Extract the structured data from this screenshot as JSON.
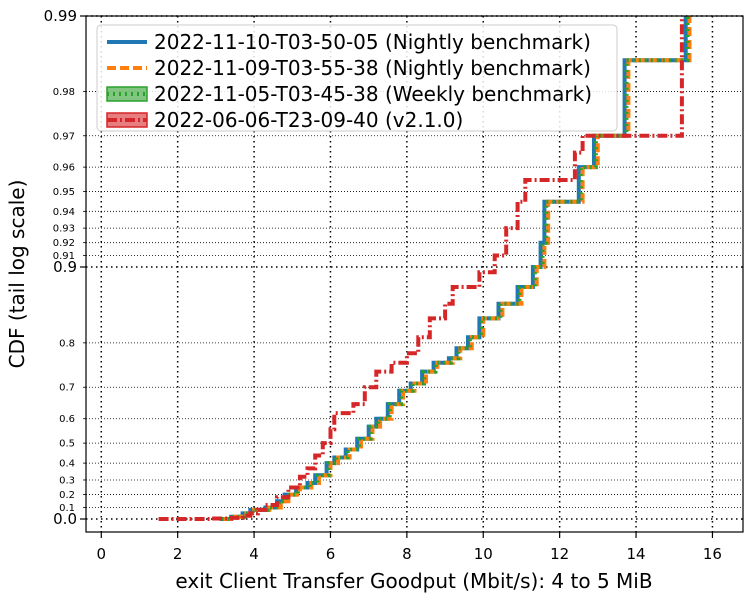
{
  "chart_data": {
    "type": "line",
    "xlabel": "exit Client Transfer Goodput (Mbit/s): 4 to 5 MiB",
    "ylabel": "CDF (tail log scale)",
    "xlim": [
      -0.4,
      16.8
    ],
    "x_ticks": [
      0,
      2,
      4,
      6,
      8,
      10,
      12,
      14,
      16
    ],
    "y_scale": "tail-log",
    "y_ticks_major": [
      0.0,
      0.9,
      0.99
    ],
    "y_ticks_major_labels": [
      "0.0",
      "0.9",
      "0.99"
    ],
    "y_ticks_minor": [
      0.1,
      0.2,
      0.3,
      0.4,
      0.5,
      0.6,
      0.7,
      0.8,
      0.91,
      0.92,
      0.93,
      0.94,
      0.95,
      0.96,
      0.97,
      0.98
    ],
    "y_ticks_minor_labels": [
      "0.1",
      "0.2",
      "0.3",
      "0.4",
      "0.5",
      "0.6",
      "0.7",
      "0.8",
      "0.91",
      "0.92",
      "0.93",
      "0.94",
      "0.95",
      "0.96",
      "0.97",
      "0.98"
    ],
    "grid": true,
    "legend_position": "top-left",
    "series": [
      {
        "name": "2022-11-10-T03-50-05 (Nightly benchmark)",
        "color": "#1f77b4",
        "style": "solid",
        "points": [
          [
            3.1,
            0.0
          ],
          [
            3.4,
            0.02
          ],
          [
            3.7,
            0.05
          ],
          [
            3.9,
            0.08
          ],
          [
            4.3,
            0.1
          ],
          [
            4.6,
            0.15
          ],
          [
            4.8,
            0.2
          ],
          [
            5.1,
            0.25
          ],
          [
            5.4,
            0.28
          ],
          [
            5.6,
            0.33
          ],
          [
            5.9,
            0.4
          ],
          [
            6.1,
            0.43
          ],
          [
            6.4,
            0.47
          ],
          [
            6.7,
            0.52
          ],
          [
            7.0,
            0.57
          ],
          [
            7.2,
            0.6
          ],
          [
            7.5,
            0.65
          ],
          [
            7.8,
            0.69
          ],
          [
            8.1,
            0.71
          ],
          [
            8.4,
            0.74
          ],
          [
            8.7,
            0.76
          ],
          [
            9.1,
            0.77
          ],
          [
            9.3,
            0.79
          ],
          [
            9.6,
            0.81
          ],
          [
            9.9,
            0.84
          ],
          [
            10.4,
            0.86
          ],
          [
            10.9,
            0.88
          ],
          [
            11.3,
            0.9
          ],
          [
            11.5,
            0.92
          ],
          [
            11.6,
            0.945
          ],
          [
            12.1,
            0.945
          ],
          [
            12.5,
            0.96
          ],
          [
            12.9,
            0.97
          ],
          [
            13.7,
            0.985
          ],
          [
            15.3,
            0.99
          ]
        ]
      },
      {
        "name": "2022-11-09-T03-55-38 (Nightly benchmark)",
        "color": "#ff7f0e",
        "style": "dashed",
        "points": [
          [
            3.2,
            0.0
          ],
          [
            3.5,
            0.02
          ],
          [
            3.8,
            0.05
          ],
          [
            4.0,
            0.08
          ],
          [
            4.4,
            0.1
          ],
          [
            4.7,
            0.15
          ],
          [
            4.9,
            0.2
          ],
          [
            5.2,
            0.25
          ],
          [
            5.5,
            0.28
          ],
          [
            5.7,
            0.33
          ],
          [
            6.0,
            0.4
          ],
          [
            6.2,
            0.43
          ],
          [
            6.5,
            0.47
          ],
          [
            6.8,
            0.52
          ],
          [
            7.1,
            0.57
          ],
          [
            7.3,
            0.6
          ],
          [
            7.6,
            0.65
          ],
          [
            7.9,
            0.69
          ],
          [
            8.2,
            0.71
          ],
          [
            8.5,
            0.74
          ],
          [
            8.8,
            0.76
          ],
          [
            9.2,
            0.77
          ],
          [
            9.4,
            0.79
          ],
          [
            9.7,
            0.81
          ],
          [
            10.0,
            0.84
          ],
          [
            10.5,
            0.86
          ],
          [
            11.0,
            0.88
          ],
          [
            11.4,
            0.9
          ],
          [
            11.6,
            0.92
          ],
          [
            11.7,
            0.945
          ],
          [
            12.2,
            0.945
          ],
          [
            12.6,
            0.96
          ],
          [
            13.0,
            0.97
          ],
          [
            13.8,
            0.985
          ],
          [
            15.4,
            0.99
          ]
        ]
      },
      {
        "name": "2022-11-05-T03-45-38 (Weekly benchmark)",
        "color": "#2ca02c",
        "style": "dotted",
        "points": [
          [
            3.15,
            0.0
          ],
          [
            3.45,
            0.02
          ],
          [
            3.75,
            0.05
          ],
          [
            3.95,
            0.08
          ],
          [
            4.35,
            0.1
          ],
          [
            4.65,
            0.15
          ],
          [
            4.85,
            0.2
          ],
          [
            5.15,
            0.25
          ],
          [
            5.45,
            0.28
          ],
          [
            5.65,
            0.33
          ],
          [
            5.95,
            0.4
          ],
          [
            6.15,
            0.43
          ],
          [
            6.45,
            0.47
          ],
          [
            6.75,
            0.52
          ],
          [
            7.05,
            0.57
          ],
          [
            7.25,
            0.6
          ],
          [
            7.55,
            0.65
          ],
          [
            7.85,
            0.69
          ],
          [
            8.15,
            0.71
          ],
          [
            8.45,
            0.74
          ],
          [
            8.75,
            0.76
          ],
          [
            9.15,
            0.77
          ],
          [
            9.35,
            0.79
          ],
          [
            9.65,
            0.81
          ],
          [
            9.95,
            0.84
          ],
          [
            10.45,
            0.86
          ],
          [
            10.95,
            0.88
          ],
          [
            11.35,
            0.9
          ],
          [
            11.55,
            0.92
          ],
          [
            11.65,
            0.945
          ],
          [
            12.15,
            0.945
          ],
          [
            12.55,
            0.96
          ],
          [
            12.95,
            0.97
          ],
          [
            13.75,
            0.985
          ],
          [
            15.35,
            0.99
          ]
        ]
      },
      {
        "name": "2022-06-06-T23-09-40 (v2.1.0)",
        "color": "#d62728",
        "style": "dashdot",
        "points": [
          [
            1.5,
            0.0
          ],
          [
            2.3,
            0.0
          ],
          [
            2.9,
            0.005
          ],
          [
            3.4,
            0.01
          ],
          [
            3.7,
            0.03
          ],
          [
            3.9,
            0.05
          ],
          [
            4.1,
            0.08
          ],
          [
            4.3,
            0.12
          ],
          [
            4.6,
            0.18
          ],
          [
            4.9,
            0.25
          ],
          [
            5.2,
            0.32
          ],
          [
            5.4,
            0.37
          ],
          [
            5.6,
            0.44
          ],
          [
            5.8,
            0.5
          ],
          [
            6.0,
            0.56
          ],
          [
            6.1,
            0.62
          ],
          [
            6.6,
            0.65
          ],
          [
            6.9,
            0.7
          ],
          [
            7.2,
            0.74
          ],
          [
            7.6,
            0.76
          ],
          [
            8.0,
            0.78
          ],
          [
            8.3,
            0.81
          ],
          [
            8.6,
            0.84
          ],
          [
            9.0,
            0.86
          ],
          [
            9.2,
            0.88
          ],
          [
            9.9,
            0.895
          ],
          [
            10.3,
            0.91
          ],
          [
            10.6,
            0.93
          ],
          [
            10.9,
            0.945
          ],
          [
            11.1,
            0.955
          ],
          [
            11.8,
            0.955
          ],
          [
            12.4,
            0.965
          ],
          [
            12.6,
            0.97
          ],
          [
            13.8,
            0.97
          ],
          [
            14.9,
            0.97
          ],
          [
            15.2,
            0.99
          ]
        ]
      }
    ]
  }
}
